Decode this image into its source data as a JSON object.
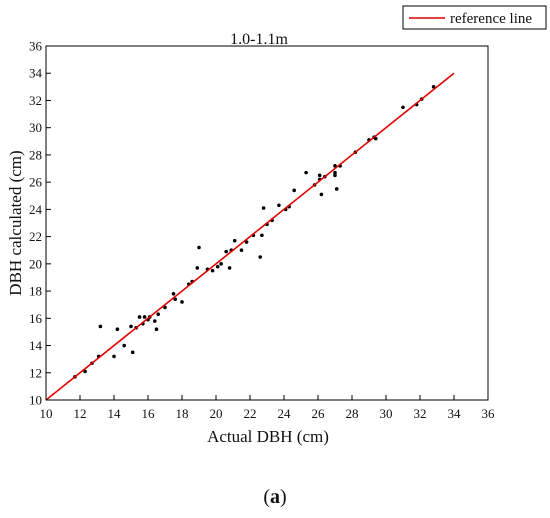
{
  "panel_label_open": "(",
  "panel_label_letter": "a",
  "panel_label_close": ")",
  "chart_data": {
    "type": "scatter",
    "title": "1.0-1.1m",
    "xlabel": "Actual DBH (cm)",
    "ylabel": "DBH calculated (cm)",
    "xlim": [
      10,
      36
    ],
    "ylim": [
      10,
      36
    ],
    "x_ticks": [
      10,
      12,
      14,
      16,
      18,
      20,
      22,
      24,
      26,
      28,
      30,
      32,
      34,
      36
    ],
    "y_ticks": [
      10,
      12,
      14,
      16,
      18,
      20,
      22,
      24,
      26,
      28,
      30,
      32,
      34,
      36
    ],
    "grid": false,
    "legend": {
      "position": "top-right",
      "entries": [
        {
          "label": "reference line",
          "color": "#e00000"
        }
      ]
    },
    "reference_line": {
      "x": [
        10,
        34
      ],
      "y": [
        10,
        34
      ],
      "color": "#e00000"
    },
    "points_color": "#000000",
    "points": [
      [
        11.7,
        11.7
      ],
      [
        12.3,
        12.1
      ],
      [
        12.7,
        12.7
      ],
      [
        13.1,
        13.2
      ],
      [
        13.2,
        15.4
      ],
      [
        14.0,
        13.2
      ],
      [
        14.2,
        15.2
      ],
      [
        14.6,
        14.0
      ],
      [
        15.0,
        15.4
      ],
      [
        15.1,
        13.5
      ],
      [
        15.3,
        15.3
      ],
      [
        15.5,
        16.1
      ],
      [
        15.7,
        15.6
      ],
      [
        15.8,
        16.1
      ],
      [
        16.0,
        15.9
      ],
      [
        16.1,
        16.1
      ],
      [
        16.4,
        15.8
      ],
      [
        16.5,
        15.2
      ],
      [
        16.6,
        16.3
      ],
      [
        17.0,
        16.8
      ],
      [
        17.5,
        17.8
      ],
      [
        17.6,
        17.4
      ],
      [
        18.0,
        17.2
      ],
      [
        18.4,
        18.5
      ],
      [
        18.6,
        18.7
      ],
      [
        18.9,
        19.7
      ],
      [
        19.0,
        21.2
      ],
      [
        19.5,
        19.6
      ],
      [
        19.8,
        19.5
      ],
      [
        20.1,
        19.8
      ],
      [
        20.3,
        20.0
      ],
      [
        20.6,
        20.9
      ],
      [
        20.8,
        19.7
      ],
      [
        20.9,
        21.0
      ],
      [
        21.1,
        21.7
      ],
      [
        21.5,
        21.0
      ],
      [
        21.8,
        21.6
      ],
      [
        22.2,
        22.1
      ],
      [
        22.6,
        20.5
      ],
      [
        22.7,
        22.1
      ],
      [
        22.8,
        24.1
      ],
      [
        23.0,
        22.9
      ],
      [
        23.3,
        23.2
      ],
      [
        23.7,
        24.3
      ],
      [
        24.1,
        24.0
      ],
      [
        24.3,
        24.2
      ],
      [
        24.6,
        25.4
      ],
      [
        25.3,
        26.7
      ],
      [
        25.8,
        25.8
      ],
      [
        26.1,
        26.2
      ],
      [
        26.1,
        26.5
      ],
      [
        26.2,
        25.1
      ],
      [
        26.4,
        26.4
      ],
      [
        27.0,
        27.2
      ],
      [
        27.0,
        26.7
      ],
      [
        27.0,
        26.5
      ],
      [
        27.1,
        25.5
      ],
      [
        27.3,
        27.2
      ],
      [
        28.2,
        28.2
      ],
      [
        29.0,
        29.1
      ],
      [
        29.3,
        29.3
      ],
      [
        29.4,
        29.2
      ],
      [
        31.0,
        31.5
      ],
      [
        31.8,
        31.7
      ],
      [
        32.1,
        32.1
      ],
      [
        32.8,
        33.0
      ]
    ]
  }
}
